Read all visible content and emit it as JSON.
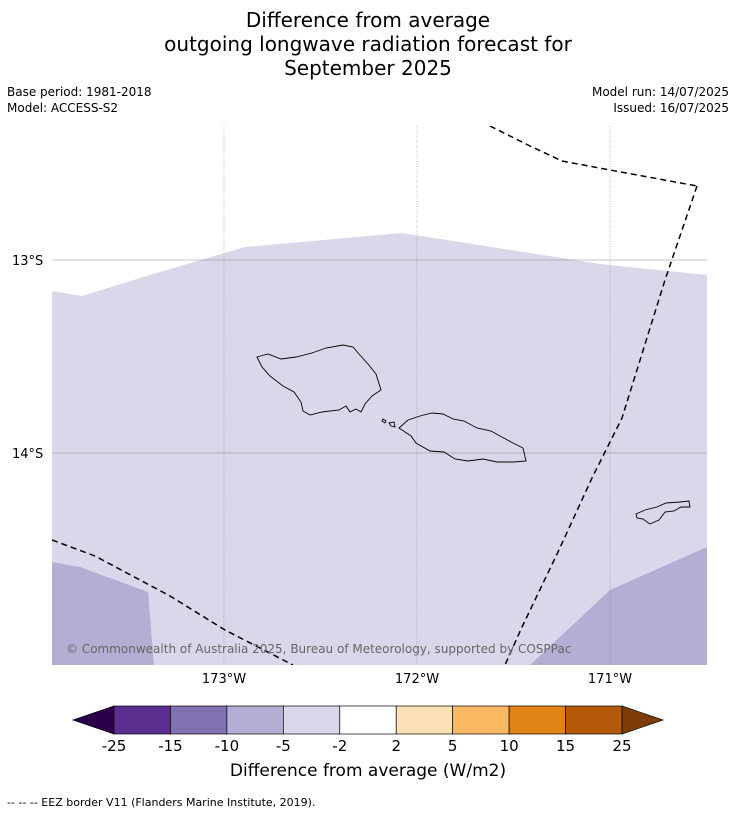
{
  "title_lines": [
    "Difference from average",
    "outgoing longwave radiation forecast for",
    "September 2025"
  ],
  "meta_left": {
    "base_period": "Base period: 1981-2018",
    "model": "Model: ACCESS-S2"
  },
  "meta_right": {
    "model_run": "Model run: 14/07/2025",
    "issued": "Issued: 16/07/2025"
  },
  "map": {
    "lat_labels": [
      "13°S",
      "14°S"
    ],
    "lon_labels": [
      "173°W",
      "172°W",
      "171°W"
    ],
    "copyright": "© Commonwealth of Australia 2025, Bureau of Meteorology, supported by COSPPac",
    "colors": {
      "background": "#ffffff",
      "fill_light": "#d8d8ea",
      "fill_medium": "#b3aed3",
      "coast": "#000000",
      "eez": "#000000",
      "grid": "#999999"
    }
  },
  "colorbar": {
    "tick_labels": [
      "-25",
      "-15",
      "-10",
      "-5",
      "-2",
      "2",
      "5",
      "10",
      "15",
      "25"
    ],
    "colors": [
      "#5b2d8e",
      "#8071b0",
      "#b3aed3",
      "#d8d8ea",
      "#ffffff",
      "#fee0b6",
      "#fcb863",
      "#e08214",
      "#b35806"
    ],
    "under_color": "#2d004b",
    "over_color": "#7f3b08",
    "label": "Difference from average (W/m2)"
  },
  "footnote": "--  --  -- EEZ border V11 (Flanders Marine Institute, 2019)."
}
